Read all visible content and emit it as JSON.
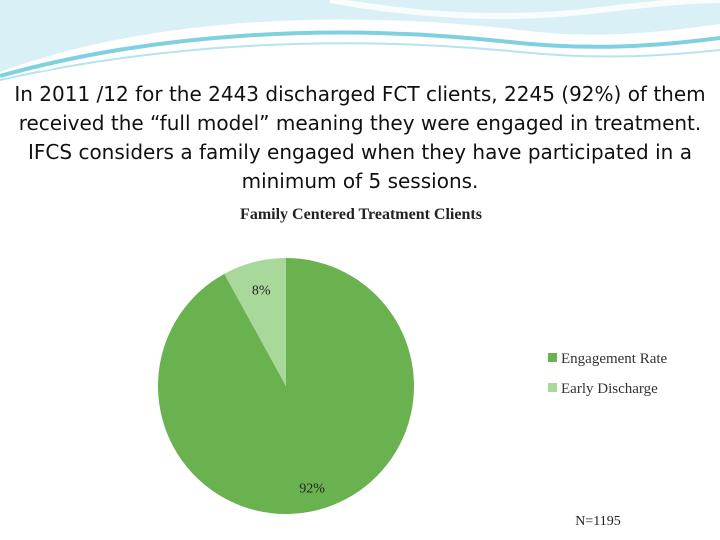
{
  "slide": {
    "description": "In  2011 /12 for the 2443 discharged FCT clients, 2245 (92%) of them received the “full model” meaning they were engaged in treatment. IFCS considers a family engaged when they have participated in a minimum of 5 sessions."
  },
  "chart_data": {
    "type": "pie",
    "title": "Family Centered Treatment Clients",
    "categories": [
      "Engagement Rate",
      "Early Discharge"
    ],
    "values": [
      92,
      8
    ],
    "data_labels": [
      "92%",
      "8%"
    ],
    "colors": [
      "#6ab150",
      "#a9d99a"
    ],
    "legend_position": "right",
    "note": "N=1195"
  }
}
